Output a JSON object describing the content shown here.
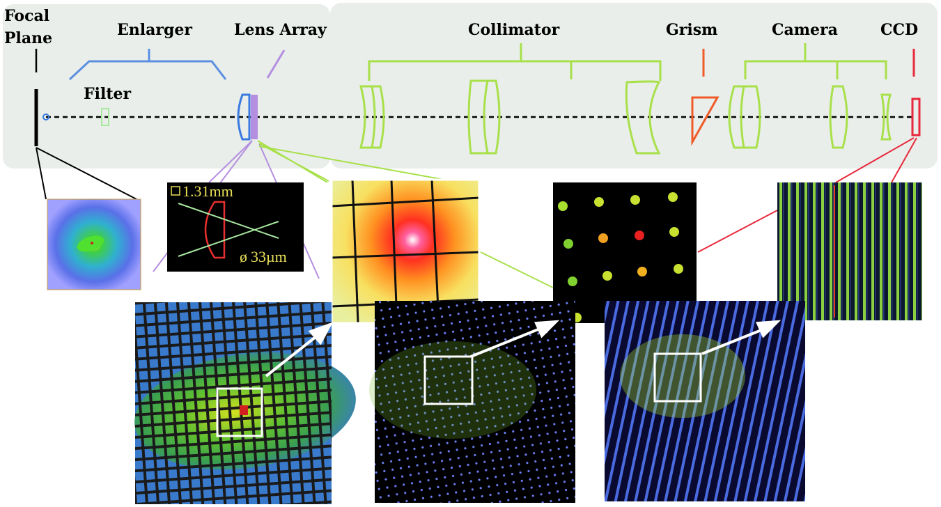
{
  "labels": {
    "focal_plane_line1": "Focal",
    "focal_plane_line2": "Plane",
    "enlarger": "Enlarger",
    "filter": "Filter",
    "lens_array": "Lens Array",
    "collimator": "Collimator",
    "grism": "Grism",
    "camera": "Camera",
    "ccd": "CCD"
  },
  "lenslet_inset": {
    "pitch": "1.31mm",
    "diameter": "33µm"
  },
  "colors": {
    "enlarger": "#5b8fe0",
    "lens_array": "#b48ee0",
    "collimator": "#a8e04a",
    "grism": "#f05a28",
    "ccd": "#e8283c",
    "panel_bg": "#e9eeea",
    "optical_axis": "#000000"
  }
}
